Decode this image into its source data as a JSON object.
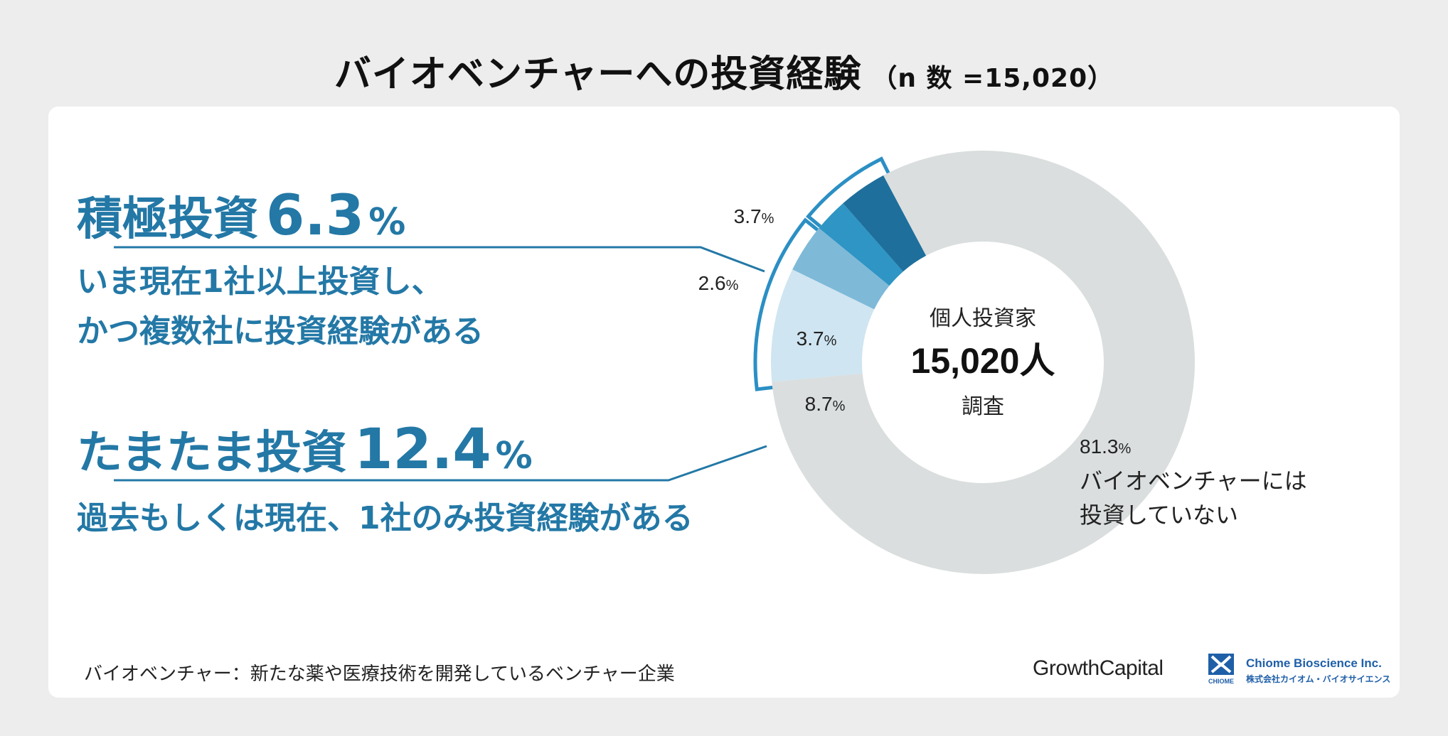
{
  "title": {
    "main": "バイオベンチャーへの投資経験",
    "sub": "（n 数 =15,020）"
  },
  "categories": {
    "active": {
      "name": "積極投資",
      "pct": "6.3",
      "unit": "%",
      "desc1": "いま現在1社以上投資し、",
      "desc2": "かつ複数社に投資経験がある"
    },
    "occasional": {
      "name": "たまたま投資",
      "pct": "12.4",
      "unit": "%",
      "desc1": "過去もしくは現在、1社のみ投資経験がある"
    }
  },
  "center": {
    "line1": "個人投資家",
    "line2": "15,020人",
    "line3": "調査"
  },
  "colors": {
    "accent": "#2378a6",
    "bracket": "#2b8fc4",
    "gray_ring": "#dadede"
  },
  "chart_data": {
    "type": "pie",
    "variant": "donut",
    "series": [
      {
        "label": "3.7",
        "unit": "%",
        "value": 3.7,
        "color": "#1e6f9c"
      },
      {
        "label": "2.6",
        "unit": "%",
        "value": 2.6,
        "color": "#2e95c4"
      },
      {
        "label": "3.7",
        "unit": "%",
        "value": 3.7,
        "color": "#7eb9d8"
      },
      {
        "label": "8.7",
        "unit": "%",
        "value": 8.7,
        "color": "#cfe5f1"
      },
      {
        "label": "81.3",
        "unit": "%",
        "value": 81.3,
        "color": "#dadede",
        "desc1": "バイオベンチャーには",
        "desc2": "投資していない"
      }
    ]
  },
  "footer": {
    "note": "バイオベンチャー：新たな薬や医療技術を開発しているベンチャー企業",
    "brand1": "GrowthCapital",
    "brand2_en": "Chiome Bioscience Inc.",
    "brand2_ja": "株式会社カイオム・バイオサイエンス",
    "brand2_mark": "CHIOME"
  }
}
